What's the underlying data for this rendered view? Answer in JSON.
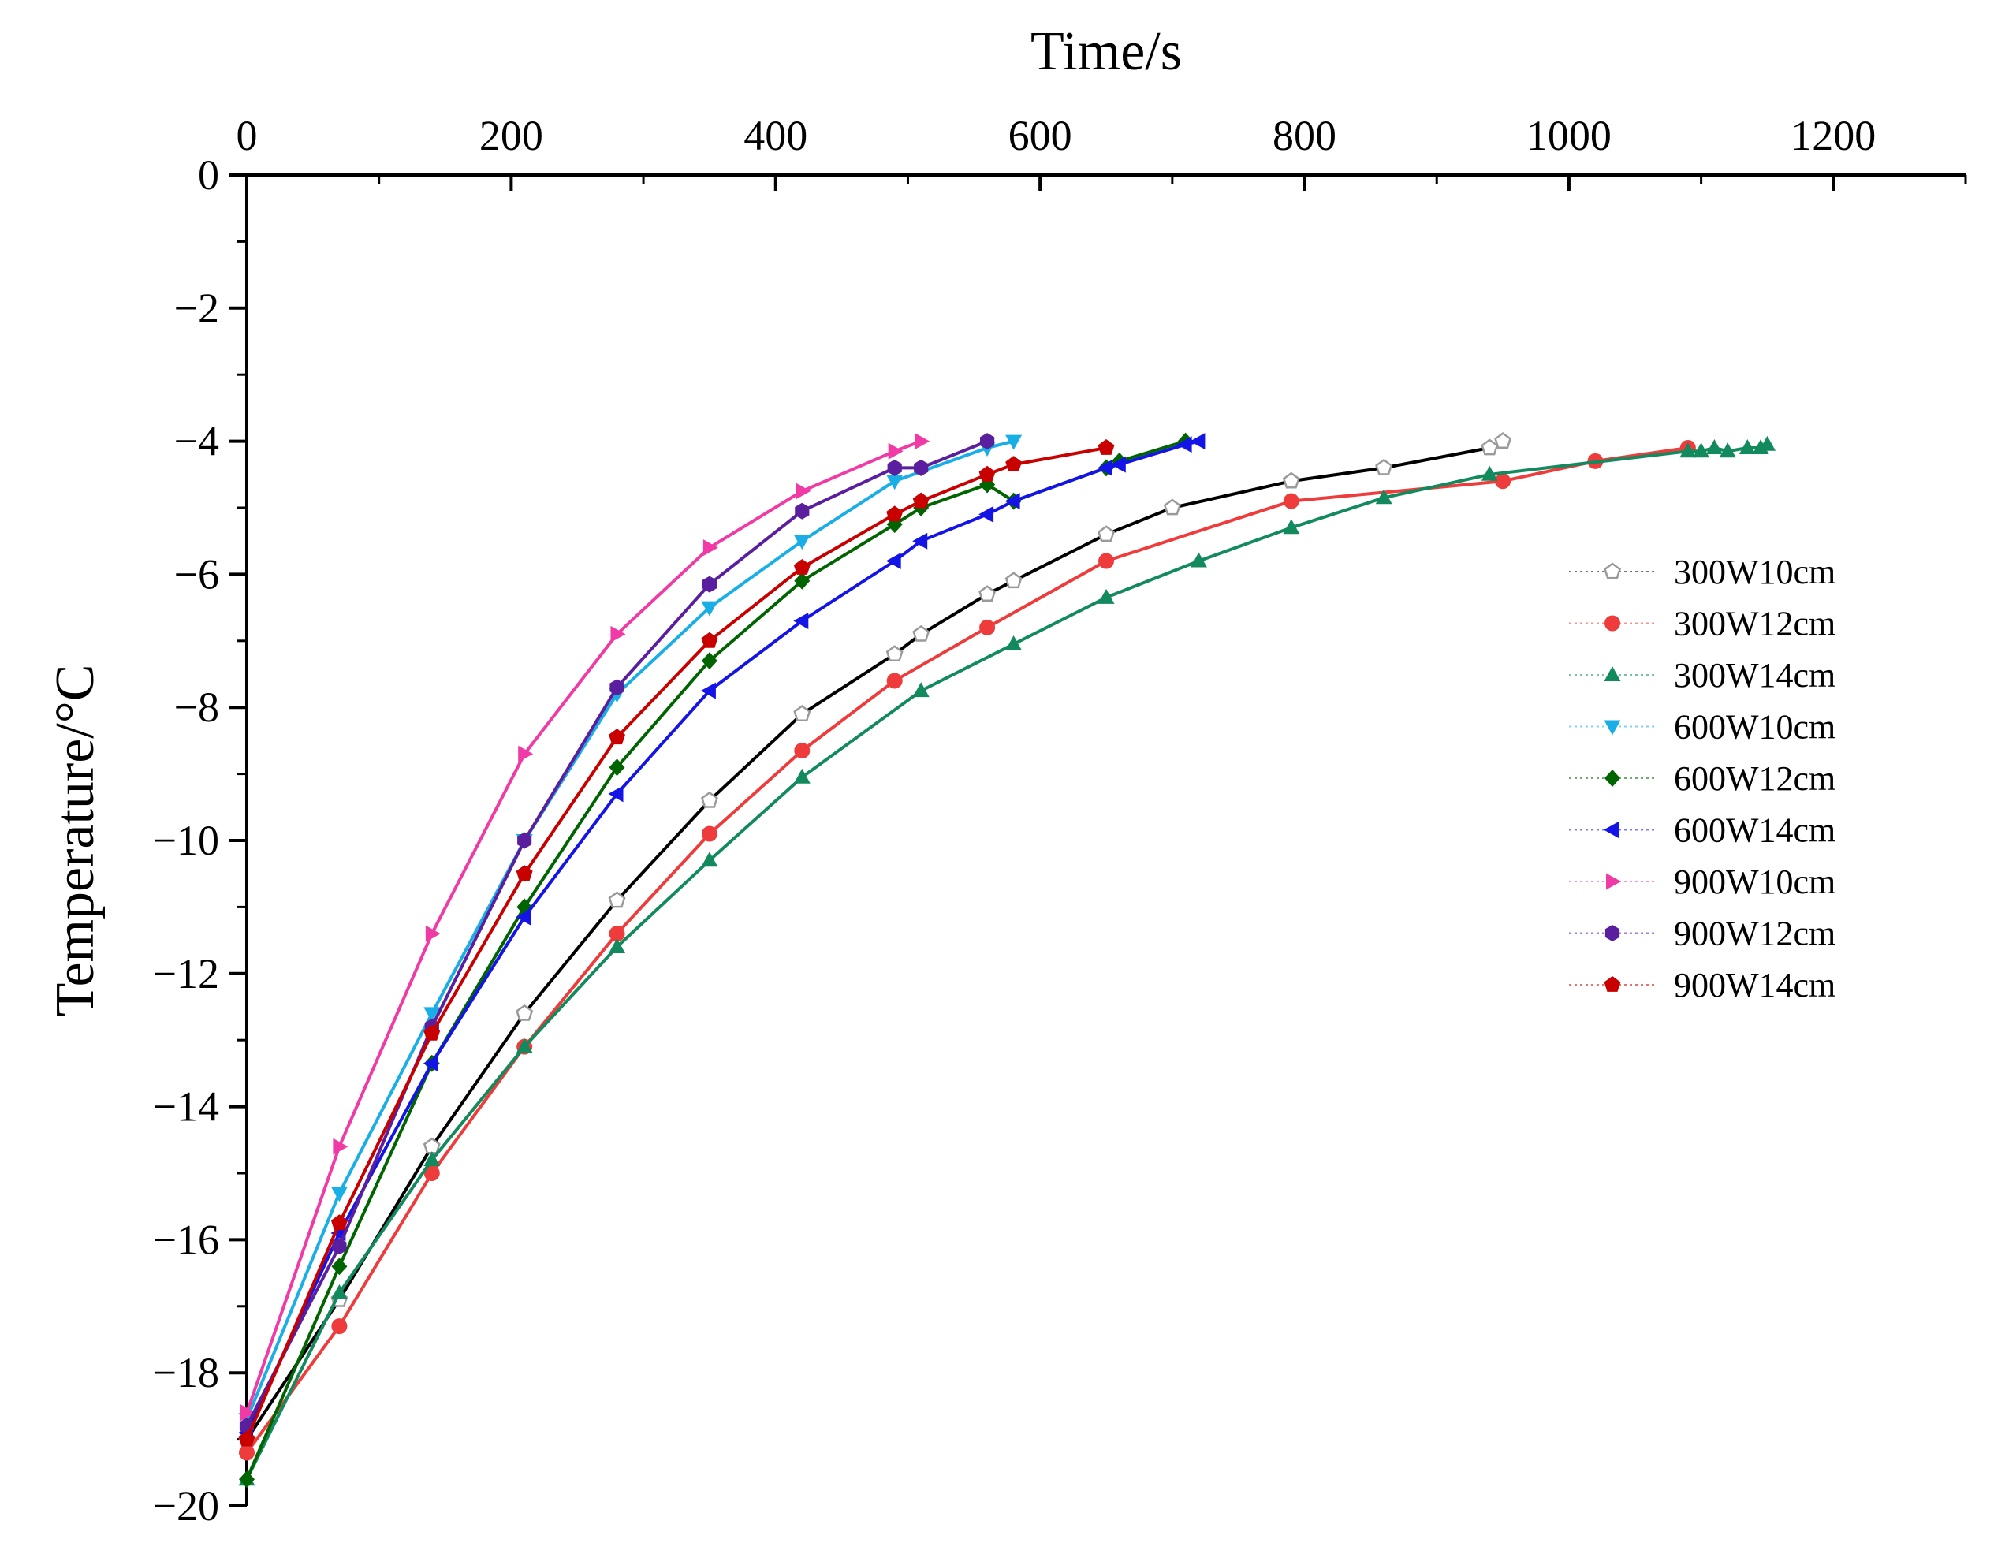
{
  "chart_data": {
    "type": "line",
    "title": "",
    "xlabel": "Time/s",
    "ylabel": "Temperature/°C",
    "xlim": [
      0,
      1300
    ],
    "ylim": [
      -20,
      0
    ],
    "x_axis_position": "top",
    "x_ticks": [
      0,
      200,
      400,
      600,
      800,
      1000,
      1200
    ],
    "y_ticks": [
      0,
      -2,
      -4,
      -6,
      -8,
      -10,
      -12,
      -14,
      -16,
      -18,
      -20
    ],
    "x_tick_labels": [
      "0",
      "200",
      "400",
      "600",
      "800",
      "1000",
      "1200"
    ],
    "y_tick_labels": [
      "0",
      "−2",
      "−4",
      "−6",
      "−8",
      "−10",
      "−12",
      "−14",
      "−16",
      "−18",
      "−20"
    ],
    "grid": false,
    "legend_position": "right",
    "series": [
      {
        "name": "300W10cm",
        "color": "#000000",
        "marker": "pentagon-hollow",
        "x": [
          0,
          70,
          140,
          210,
          280,
          350,
          420,
          490,
          510,
          560,
          580,
          650,
          700,
          790,
          860,
          940,
          950
        ],
        "y": [
          -19.0,
          -16.9,
          -14.6,
          -12.6,
          -10.9,
          -9.4,
          -8.1,
          -7.2,
          -6.9,
          -6.3,
          -6.1,
          -5.4,
          -5.0,
          -4.6,
          -4.4,
          -4.1,
          -4.0
        ]
      },
      {
        "name": "300W12cm",
        "color": "#ee3b3b",
        "marker": "circle",
        "x": [
          0,
          70,
          140,
          210,
          280,
          350,
          420,
          490,
          560,
          650,
          790,
          950,
          1020,
          1090
        ],
        "y": [
          -19.2,
          -17.3,
          -15.0,
          -13.1,
          -11.4,
          -9.9,
          -8.65,
          -7.6,
          -6.8,
          -5.8,
          -4.9,
          -4.6,
          -4.3,
          -4.1
        ]
      },
      {
        "name": "300W14cm",
        "color": "#138a5e",
        "marker": "triangle-up",
        "x": [
          0,
          70,
          140,
          210,
          280,
          350,
          420,
          510,
          580,
          650,
          720,
          790,
          860,
          940,
          1090,
          1100,
          1110,
          1120,
          1135,
          1145,
          1150
        ],
        "y": [
          -19.6,
          -16.8,
          -14.8,
          -13.1,
          -11.6,
          -10.3,
          -9.05,
          -7.75,
          -7.05,
          -6.35,
          -5.8,
          -5.3,
          -4.85,
          -4.5,
          -4.15,
          -4.15,
          -4.1,
          -4.15,
          -4.1,
          -4.1,
          -4.05
        ]
      },
      {
        "name": "600W10cm",
        "color": "#19aee6",
        "marker": "triangle-down",
        "x": [
          0,
          70,
          140,
          210,
          280,
          350,
          420,
          490,
          560,
          580
        ],
        "y": [
          -18.7,
          -15.3,
          -12.6,
          -10.0,
          -7.8,
          -6.5,
          -5.5,
          -4.6,
          -4.1,
          -4.0
        ]
      },
      {
        "name": "600W12cm",
        "color": "#006400",
        "marker": "diamond",
        "x": [
          0,
          70,
          140,
          210,
          280,
          350,
          420,
          490,
          510,
          560,
          580,
          650,
          660,
          710
        ],
        "y": [
          -19.6,
          -16.4,
          -13.35,
          -11.0,
          -8.9,
          -7.3,
          -6.1,
          -5.25,
          -5.0,
          -4.65,
          -4.9,
          -4.4,
          -4.3,
          -4.0
        ]
      },
      {
        "name": "600W14cm",
        "color": "#1414e6",
        "marker": "triangle-left",
        "x": [
          0,
          70,
          140,
          210,
          280,
          350,
          420,
          490,
          510,
          560,
          580,
          650,
          660,
          710,
          720
        ],
        "y": [
          -18.9,
          -15.9,
          -13.35,
          -11.15,
          -9.3,
          -7.75,
          -6.7,
          -5.8,
          -5.5,
          -5.1,
          -4.9,
          -4.4,
          -4.35,
          -4.05,
          -4.0
        ]
      },
      {
        "name": "900W10cm",
        "color": "#f03aa5",
        "marker": "triangle-right",
        "x": [
          0,
          70,
          140,
          210,
          280,
          350,
          420,
          490,
          510
        ],
        "y": [
          -18.6,
          -14.6,
          -11.4,
          -8.7,
          -6.9,
          -5.6,
          -4.75,
          -4.15,
          -4.0
        ]
      },
      {
        "name": "900W12cm",
        "color": "#5a1f9e",
        "marker": "hexagon",
        "x": [
          0,
          70,
          140,
          210,
          280,
          350,
          420,
          490,
          510,
          560
        ],
        "y": [
          -18.8,
          -16.1,
          -12.8,
          -10.0,
          -7.7,
          -6.15,
          -5.05,
          -4.4,
          -4.4,
          -4.0
        ]
      },
      {
        "name": "900W14cm",
        "color": "#c80000",
        "marker": "pentagon",
        "x": [
          0,
          70,
          140,
          210,
          280,
          350,
          420,
          490,
          510,
          560,
          580,
          650
        ],
        "y": [
          -19.0,
          -15.75,
          -12.9,
          -10.5,
          -8.45,
          -7.0,
          -5.9,
          -5.1,
          -4.9,
          -4.5,
          -4.35,
          -4.1
        ]
      }
    ]
  }
}
